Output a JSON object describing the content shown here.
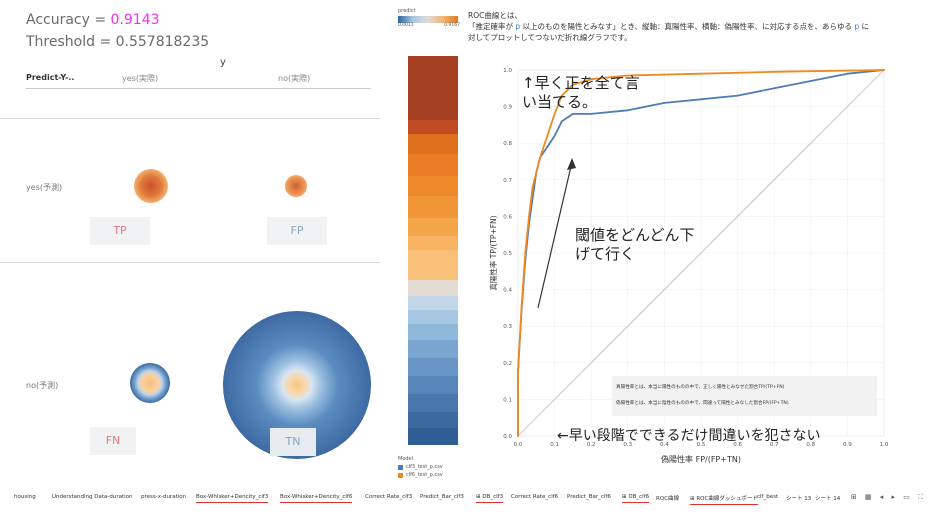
{
  "metrics": {
    "accuracy_label": "Accuracy = ",
    "accuracy_value": "0.9143",
    "threshold_text": "Threshold = 0.557818235"
  },
  "matrix": {
    "y_label": "y",
    "corner": "Predict-Y-..",
    "col_yes": "yes(実際)",
    "col_no": "no(実際)",
    "row_yes": "yes(予測)",
    "row_no": "no(予測)",
    "tp": "TP",
    "fp": "FP",
    "fn": "FN",
    "tn": "TN"
  },
  "legend": {
    "title": "predict",
    "min": "0.0011",
    "max": "0.9167",
    "model_title": "Model",
    "models": [
      {
        "name": "clf3_test_p.csv",
        "color": "#4f7cb4"
      },
      {
        "name": "clf6_test_p.csv",
        "color": "#f08a1e"
      }
    ]
  },
  "roc": {
    "desc_line1": "ROC曲線とは、",
    "desc_line2a": "「推定確率が ",
    "desc_p": "p",
    "desc_line2b": " 以上のものを陽性とみなす」とき、縦軸：真陽性率、横軸：偽陽性率、に対応する点を、あらゆる ",
    "desc_line2c": " に",
    "desc_line3": "対してプロットしてつないだ折れ線グラフです。",
    "annot_top_1": "↑早く正を全て言",
    "annot_top_2": "い当てる。",
    "annot_mid_1": "閾値をどんどん下",
    "annot_mid_2": "げて行く",
    "annot_bottom": "←早い段階でできるだけ間違いを犯さない",
    "def_tpr": "真陽性率とは、本当に陽性のものの中で、正しく陽性とみなせた割合TP/(TP+FN)",
    "def_fpr": "偽陽性率とは、本当に陰性のものの中で、間違って陽性とみなした割合FP/(FP+TN)"
  },
  "chart_data": {
    "type": "line",
    "xlabel": "偽陽性率 FP/(FP+TN)",
    "ylabel": "真陽性率 TP/(TP+FN)",
    "xlim": [
      0,
      1
    ],
    "ylim": [
      0,
      1
    ],
    "x_ticks": [
      "0.0",
      "0.1",
      "0.2",
      "0.3",
      "0.4",
      "0.5",
      "0.6",
      "0.7",
      "0.8",
      "0.9",
      "1.0"
    ],
    "y_ticks": [
      "0.0",
      "0.1",
      "0.2",
      "0.3",
      "0.4",
      "0.5",
      "0.6",
      "0.7",
      "0.8",
      "0.9",
      "1.0"
    ],
    "grid": true,
    "diagonal": true,
    "series": [
      {
        "name": "clf3_test_p.csv",
        "color": "#4f7cb4",
        "points": [
          [
            0,
            0
          ],
          [
            0,
            0.18
          ],
          [
            0.01,
            0.35
          ],
          [
            0.02,
            0.48
          ],
          [
            0.03,
            0.58
          ],
          [
            0.04,
            0.65
          ],
          [
            0.05,
            0.72
          ],
          [
            0.06,
            0.76
          ],
          [
            0.08,
            0.79
          ],
          [
            0.1,
            0.82
          ],
          [
            0.12,
            0.86
          ],
          [
            0.15,
            0.88
          ],
          [
            0.2,
            0.88
          ],
          [
            0.3,
            0.89
          ],
          [
            0.4,
            0.91
          ],
          [
            0.5,
            0.92
          ],
          [
            0.6,
            0.93
          ],
          [
            0.7,
            0.95
          ],
          [
            0.8,
            0.97
          ],
          [
            0.9,
            0.99
          ],
          [
            1,
            1
          ]
        ]
      },
      {
        "name": "clf6_test_p.csv",
        "color": "#f08a1e",
        "points": [
          [
            0,
            0
          ],
          [
            0,
            0.17
          ],
          [
            0.01,
            0.36
          ],
          [
            0.02,
            0.5
          ],
          [
            0.03,
            0.6
          ],
          [
            0.04,
            0.68
          ],
          [
            0.06,
            0.76
          ],
          [
            0.08,
            0.82
          ],
          [
            0.1,
            0.88
          ],
          [
            0.12,
            0.93
          ],
          [
            0.15,
            0.96
          ],
          [
            0.2,
            0.975
          ],
          [
            0.3,
            0.985
          ],
          [
            0.5,
            0.99
          ],
          [
            0.7,
            0.995
          ],
          [
            1,
            1
          ]
        ]
      }
    ]
  },
  "tabs": [
    {
      "label": "housing",
      "underline": false
    },
    {
      "label": "Understanding Data-duration",
      "underline": false
    },
    {
      "label": "press-x-duration",
      "underline": false
    },
    {
      "label": "Box-Whisker+Dencity_clf3",
      "underline": true
    },
    {
      "label": "Box-Whisker+Dencity_clf6",
      "underline": true
    },
    {
      "label": "Correct Rate_clf3",
      "underline": false
    },
    {
      "label": "Predict_Bar_clf3",
      "underline": false
    },
    {
      "label": "⊞ DB_clf3",
      "underline": true
    },
    {
      "label": "Correct Rate_clf6",
      "underline": false
    },
    {
      "label": "Predict_Bar_clf6",
      "underline": false
    },
    {
      "label": "⊞ DB_clf6",
      "underline": true
    },
    {
      "label": "ROC曲線",
      "underline": false
    },
    {
      "label": "⊞ ROC曲線ダッシュボード",
      "underline": true
    },
    {
      "label": "clf_best",
      "underline": false
    },
    {
      "label": "シート 13",
      "underline": false
    },
    {
      "label": "シート 14",
      "underline": false
    }
  ],
  "tab_controls": "⊞ ▦ ◂ ▸ ▭ ⛶"
}
